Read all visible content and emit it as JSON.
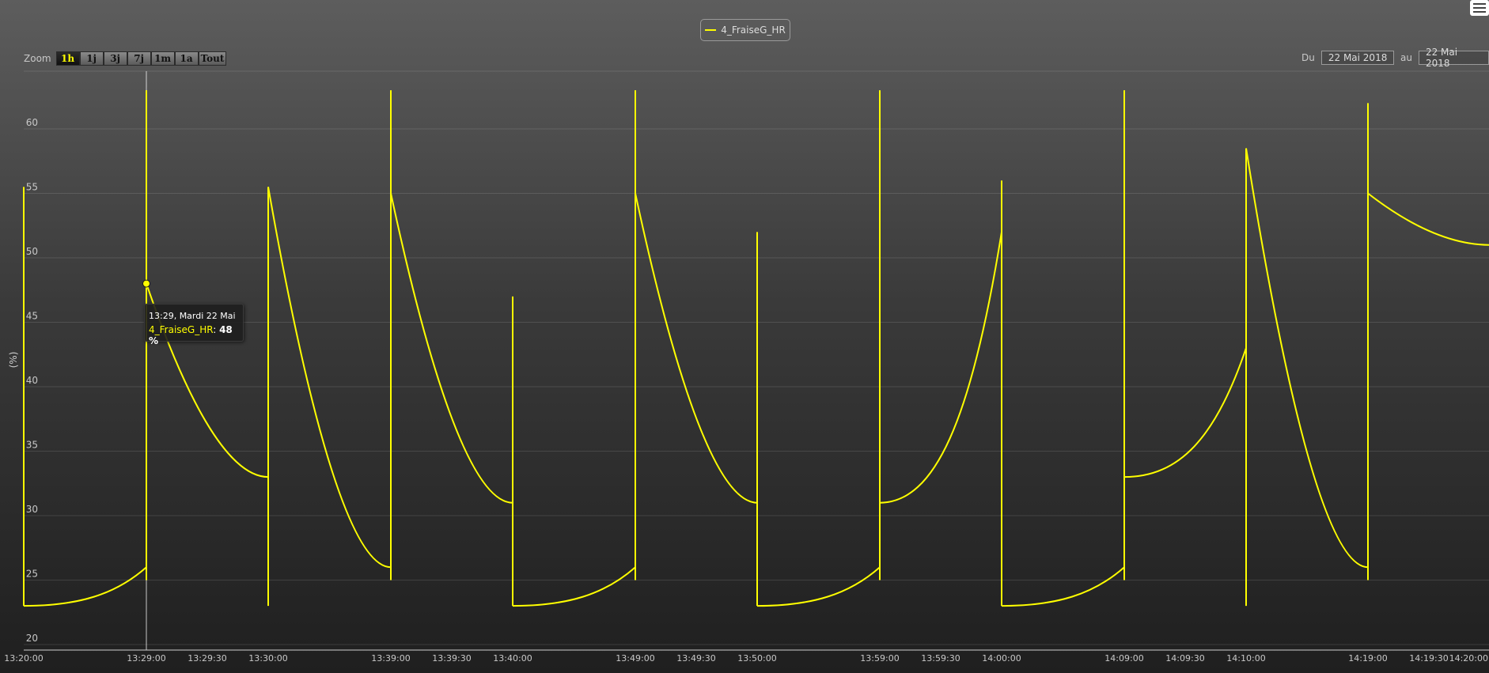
{
  "toolbar": {
    "zoom_label": "Zoom",
    "zoom_buttons": [
      "1h",
      "1j",
      "3j",
      "7j",
      "1m",
      "1a",
      "Tout"
    ],
    "zoom_active": "1h",
    "from_label": "Du",
    "from_date": "22 Mai 2018",
    "to_label": "au",
    "to_date": "22 Mai 2018"
  },
  "tooltip": {
    "header": "13:29, Mardi 22 Mai",
    "series_name": "4_FraiseG_HR",
    "value_text": "48 %"
  },
  "chart_data": {
    "type": "line",
    "title": "",
    "ylabel": "(%)",
    "xlabel": "",
    "ylim": [
      20,
      65
    ],
    "grid": true,
    "legend": "top-center",
    "colors": {
      "series": "#ffff00",
      "crosshair": "#ffffff"
    },
    "y_ticks": [
      20,
      25,
      30,
      35,
      40,
      45,
      50,
      55,
      60
    ],
    "x_ticks": [
      "13:20:00",
      "13:29:00",
      "13:29:30",
      "13:30:00",
      "13:39:00",
      "13:39:30",
      "13:40:00",
      "13:49:00",
      "13:49:30",
      "13:50:00",
      "13:59:00",
      "13:59:30",
      "14:00:00",
      "14:09:00",
      "14:09:30",
      "14:10:00",
      "14:19:00",
      "14:19:30",
      "14:20:00"
    ],
    "crosshair_x": "13:29:00",
    "highlight_point": {
      "x": "13:29:00",
      "y": 48
    },
    "series": [
      {
        "name": "4_FraiseG_HR",
        "segments": [
          {
            "kind": "rise",
            "x0": "13:20:00",
            "x1": "13:29:00",
            "y0": 23,
            "y1": 26
          },
          {
            "kind": "fall",
            "x0": "13:29:00",
            "x1": "13:30:00",
            "y0": 48,
            "y1": 33
          },
          {
            "kind": "fall",
            "x0": "13:30:00",
            "x1": "13:39:00",
            "y0": 55.5,
            "y1": 26
          },
          {
            "kind": "fall",
            "x0": "13:39:00",
            "x1": "13:40:00",
            "y0": 55,
            "y1": 31
          },
          {
            "kind": "rise",
            "x0": "13:40:00",
            "x1": "13:49:00",
            "y0": 23,
            "y1": 26
          },
          {
            "kind": "fall",
            "x0": "13:49:00",
            "x1": "13:50:00",
            "y0": 55,
            "y1": 31
          },
          {
            "kind": "rise",
            "x0": "13:50:00",
            "x1": "13:59:00",
            "y0": 23,
            "y1": 26
          },
          {
            "kind": "rise",
            "x0": "13:59:00",
            "x1": "14:00:00",
            "y0": 31,
            "y1": 52
          },
          {
            "kind": "rise",
            "x0": "14:00:00",
            "x1": "14:09:00",
            "y0": 23,
            "y1": 26
          },
          {
            "kind": "rise",
            "x0": "14:09:00",
            "x1": "14:10:00",
            "y0": 33,
            "y1": 43
          },
          {
            "kind": "fall",
            "x0": "14:10:00",
            "x1": "14:19:00",
            "y0": 58.5,
            "y1": 26
          },
          {
            "kind": "fall",
            "x0": "14:19:00",
            "x1": "14:20:00",
            "y0": 55,
            "y1": 51
          }
        ],
        "spikes": [
          {
            "x": "13:20:00",
            "y_min": 23,
            "y_max": 55.5
          },
          {
            "x": "13:29:00",
            "y_min": 25,
            "y_max": 63
          },
          {
            "x": "13:30:00",
            "y_min": 23,
            "y_max": 55.5
          },
          {
            "x": "13:39:00",
            "y_min": 25,
            "y_max": 63
          },
          {
            "x": "13:40:00",
            "y_min": 23,
            "y_max": 47
          },
          {
            "x": "13:49:00",
            "y_min": 25,
            "y_max": 63
          },
          {
            "x": "13:50:00",
            "y_min": 23,
            "y_max": 52
          },
          {
            "x": "13:59:00",
            "y_min": 25,
            "y_max": 63
          },
          {
            "x": "14:00:00",
            "y_min": 23,
            "y_max": 56
          },
          {
            "x": "14:09:00",
            "y_min": 25,
            "y_max": 63
          },
          {
            "x": "14:10:00",
            "y_min": 23,
            "y_max": 58.5
          },
          {
            "x": "14:19:00",
            "y_min": 25,
            "y_max": 62
          }
        ]
      }
    ]
  }
}
